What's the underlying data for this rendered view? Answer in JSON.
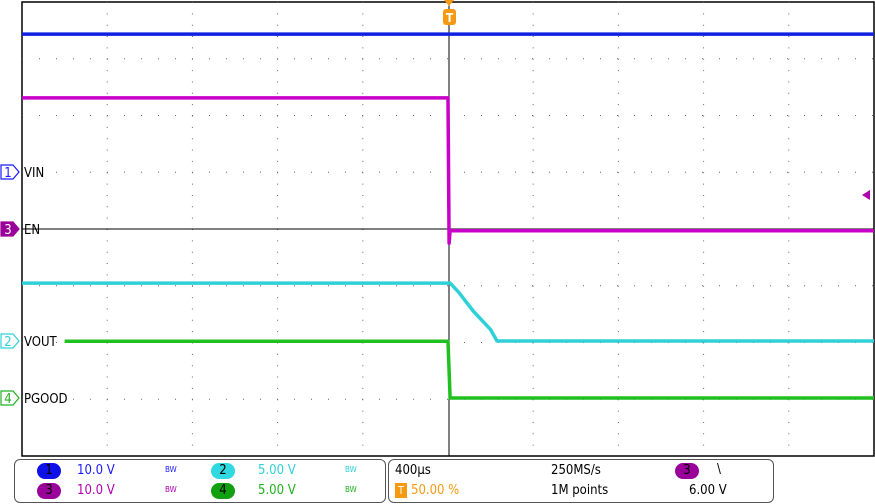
{
  "chart_data": {
    "type": "line",
    "title": "",
    "x_unit": "ms",
    "xlim": [
      -2.0,
      2.0
    ],
    "grid": true,
    "series": [
      {
        "name": "VIN",
        "channel": "1",
        "volts_per_div": 10.0,
        "color": "#1020e0",
        "points": [
          [
            -2.0,
            24.3
          ],
          [
            2.0,
            24.3
          ]
        ]
      },
      {
        "name": "EN",
        "channel": "3",
        "volts_per_div": 10.0,
        "color": "#c800c8",
        "points": [
          [
            -2.0,
            23.1
          ],
          [
            0.0,
            23.1
          ],
          [
            0.005,
            -2.5
          ],
          [
            0.01,
            -0.3
          ],
          [
            2.0,
            -0.3
          ]
        ]
      },
      {
        "name": "VOUT",
        "channel": "2",
        "volts_per_div": 5.0,
        "color": "#30d0d8",
        "points": [
          [
            -2.0,
            5.1
          ],
          [
            0.01,
            5.1
          ],
          [
            0.05,
            4.3
          ],
          [
            0.12,
            2.6
          ],
          [
            0.2,
            1.0
          ],
          [
            0.23,
            0.0
          ],
          [
            2.0,
            0.0
          ]
        ]
      },
      {
        "name": "PGOOD",
        "channel": "4",
        "volts_per_div": 5.0,
        "color": "#20c020",
        "points": [
          [
            -1.8,
            5.0
          ],
          [
            0.0,
            5.0
          ],
          [
            0.01,
            0.0
          ],
          [
            2.0,
            0.0
          ]
        ]
      }
    ]
  },
  "channels": [
    {
      "num": "1",
      "scale": "10.0 V",
      "bw": "BW",
      "color": "#1a1aff",
      "badge": "#1010e8",
      "label": "VIN"
    },
    {
      "num": "2",
      "scale": "5.00 V",
      "bw": "BW",
      "color": "#30d0d8",
      "badge": "#30d8e0",
      "label": "VOUT"
    },
    {
      "num": "3",
      "scale": "10.0 V",
      "bw": "BW",
      "color": "#b000b0",
      "badge": "#9a009a",
      "label": "EN"
    },
    {
      "num": "4",
      "scale": "5.00 V",
      "bw": "BW",
      "color": "#20b020",
      "badge": "#10a010",
      "label": "PGOOD"
    }
  ],
  "timebase": {
    "time_per_div": "400µs",
    "sample_rate": "250MS/s",
    "trigger_position": "50.00 %",
    "record_length": "1M points",
    "trigger_source": "3",
    "trigger_slope": "\\",
    "trigger_level": "6.00 V",
    "trigger_icon": "T",
    "trigger_color": "#f59a10"
  }
}
